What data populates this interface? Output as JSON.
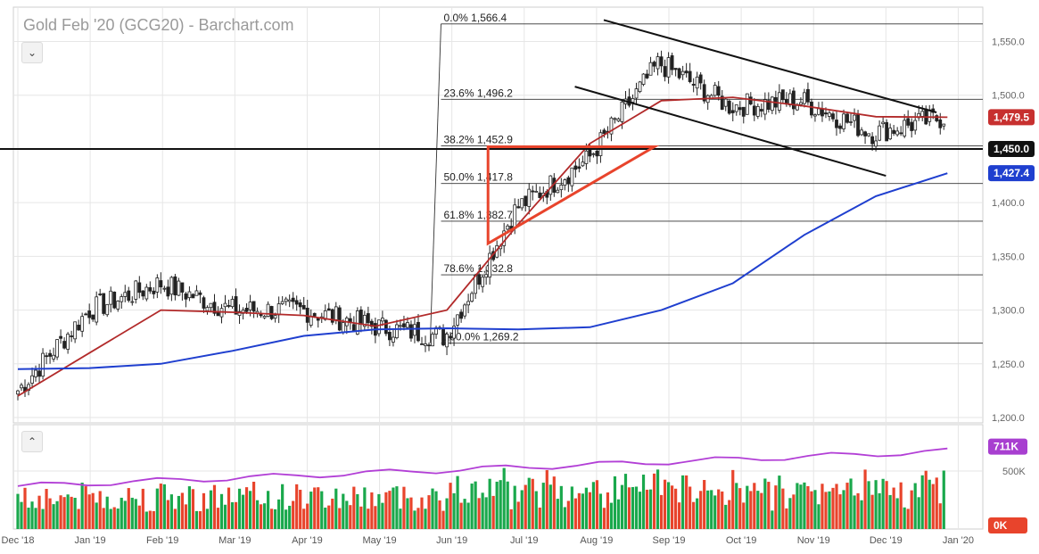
{
  "header": {
    "title": "Gold Feb '20 (GCG20) - Barchart.com"
  },
  "controls": {
    "collapse_main": "⌄",
    "expand_volume": "⌃"
  },
  "colors": {
    "up": "#1aa84c",
    "down": "#e8442c",
    "sma_fast": "#b22a2a",
    "sma_slow": "#1f3fcf",
    "volume_ma": "#b23fd6",
    "trend_line": "#111111",
    "triangle": "#e8442c",
    "grid": "#e6e6e6",
    "fib": "#333333",
    "label_red": "#c7302f",
    "label_black": "#111111",
    "label_blue": "#1f3fcf",
    "label_purple": "#a83fd0",
    "label_orange": "#e8442c",
    "volume_special": "#2233aa"
  },
  "chart_data": {
    "type": "candlestick",
    "title": "Gold Feb '20 (GCG20) - Barchart.com",
    "x_ticks": [
      "Dec '18",
      "Jan '19",
      "Feb '19",
      "Mar '19",
      "Apr '19",
      "May '19",
      "Jun '19",
      "Jul '19",
      "Aug '19",
      "Sep '19",
      "Oct '19",
      "Nov '19",
      "Dec '19",
      "Jan '20"
    ],
    "y_ticks": [
      "1,200.0",
      "1,250.0",
      "1,300.0",
      "1,350.0",
      "1,400.0",
      "1,450.0",
      "1,500.0",
      "1,550.0"
    ],
    "y_range": [
      1195,
      1582
    ],
    "monthly_closes": [
      1225,
      1300,
      1325,
      1300,
      1300,
      1285,
      1275,
      1395,
      1440,
      1530,
      1490,
      1495,
      1465,
      1479.5
    ],
    "fibonacci": [
      {
        "label": "0.0% 1,566.4",
        "value": 1566.4
      },
      {
        "label": "23.6% 1,496.2",
        "value": 1496.2
      },
      {
        "label": "38.2% 1,452.9",
        "value": 1452.9
      },
      {
        "label": "50.0% 1,417.8",
        "value": 1417.8
      },
      {
        "label": "61.8% 1,382.7",
        "value": 1382.7
      },
      {
        "label": "78.6% 1,332.8",
        "value": 1332.8
      },
      {
        "label": "100.0% 1,269.2",
        "value": 1269.2
      }
    ],
    "support_level": 1450.0,
    "last_price": {
      "label": "1,479.5",
      "value": 1479.5
    },
    "sma_slow_last": {
      "label": "1,427.4",
      "value": 1427.4
    },
    "sma_slow_path": [
      1245,
      1246,
      1250,
      1262,
      1276,
      1282,
      1283,
      1282,
      1284,
      1300,
      1325,
      1370,
      1406,
      1427.4
    ],
    "sma_fast_path": [
      1220,
      1260,
      1300,
      1298,
      1295,
      1285,
      1300,
      1380,
      1455,
      1495,
      1498,
      1490,
      1480,
      1479.5
    ],
    "volume": {
      "ticks": [
        "500K"
      ],
      "range": [
        0,
        900
      ],
      "last_volume_ma": {
        "label": "711K",
        "value": 711
      },
      "last_volume": {
        "label": "0K",
        "value": 0
      }
    }
  }
}
